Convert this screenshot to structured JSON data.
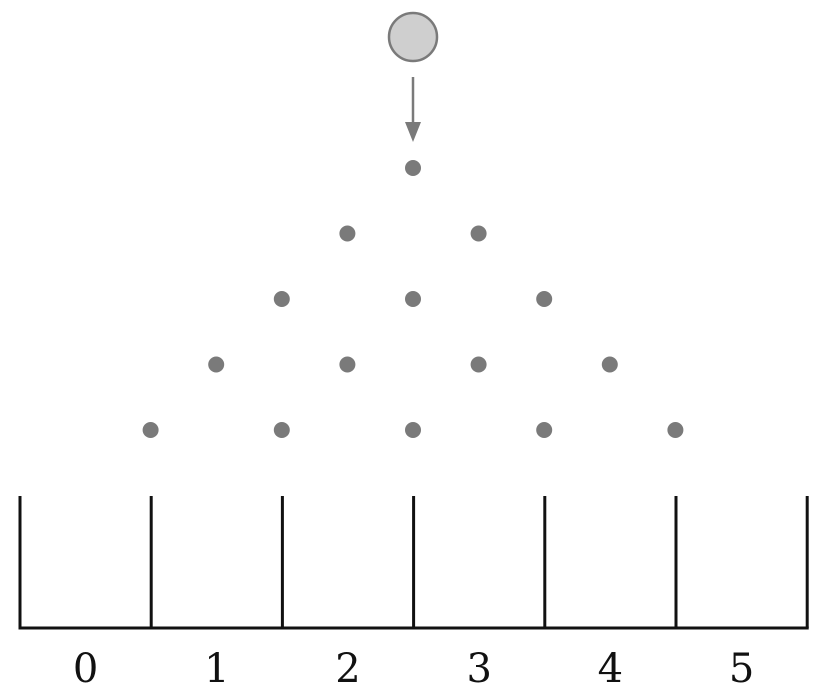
{
  "diagram": {
    "rows": 5,
    "bin_labels": [
      "0",
      "1",
      "2",
      "3",
      "4",
      "5"
    ],
    "colors": {
      "ball_fill": "#cfcfcf",
      "ball_stroke": "#7a7a7a",
      "peg": "#7a7a7a",
      "arrow": "#7a7a7a",
      "bins": "#111111"
    }
  }
}
